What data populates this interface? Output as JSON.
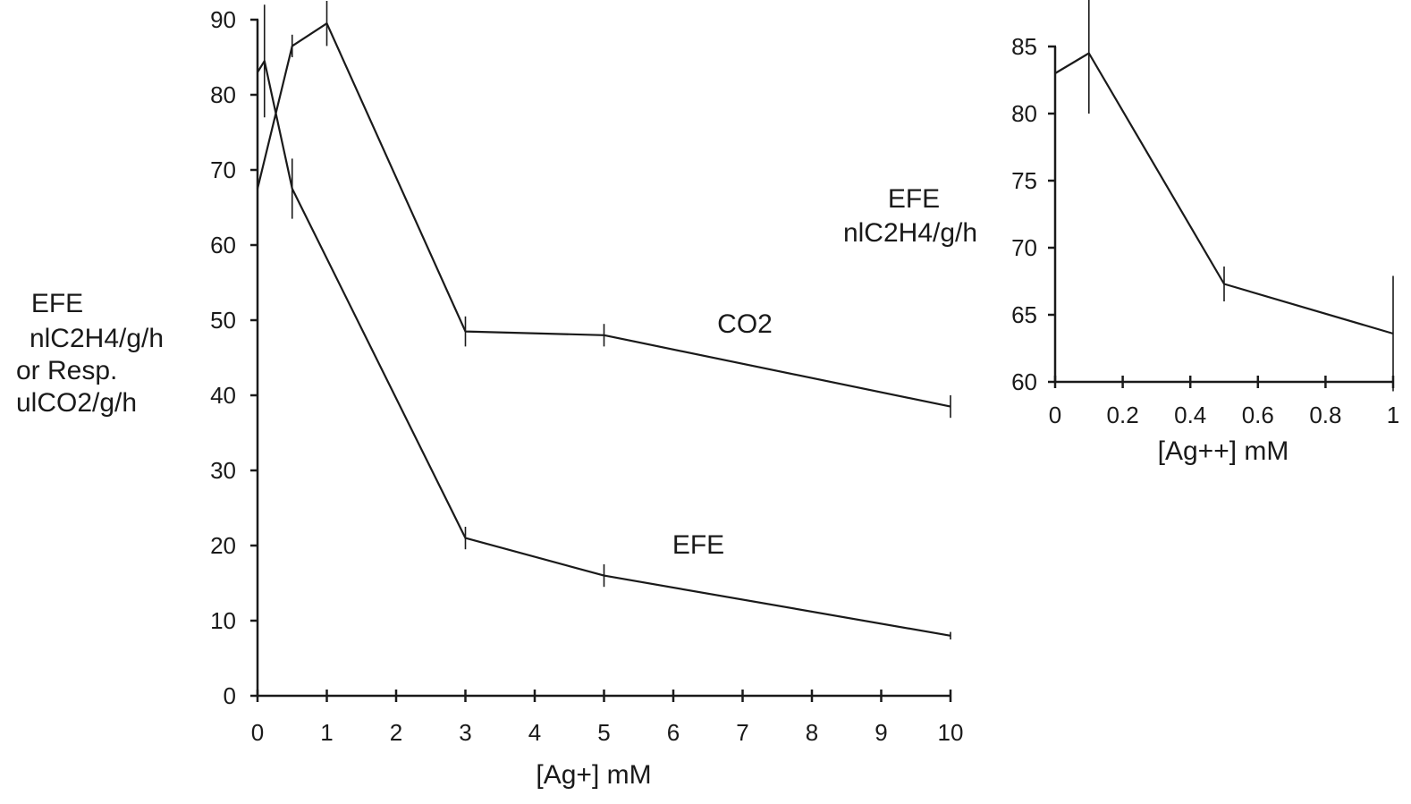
{
  "chart_data": [
    {
      "type": "line",
      "title": "",
      "xlabel": "[Ag+] mM",
      "ylabel_lines": [
        "EFE",
        "nlC2H4/g/h",
        "or Resp.",
        "ulCO2/g/h"
      ],
      "xlim": [
        0,
        10
      ],
      "ylim": [
        0,
        90
      ],
      "xticks": [
        0,
        1,
        2,
        3,
        4,
        5,
        6,
        7,
        8,
        9,
        10
      ],
      "yticks": [
        0,
        10,
        20,
        30,
        40,
        50,
        60,
        70,
        80,
        90
      ],
      "grid": false,
      "series": [
        {
          "name": "CO2",
          "x": [
            0,
            0.5,
            1,
            3,
            5,
            10
          ],
          "y": [
            67.5,
            86.5,
            89.5,
            48.5,
            48,
            38.5
          ],
          "err": [
            5,
            1.5,
            3,
            2,
            1.5,
            1.5
          ]
        },
        {
          "name": "EFE",
          "x": [
            0,
            0.1,
            0.5,
            3,
            5,
            10
          ],
          "y": [
            83,
            84.5,
            67.5,
            21,
            16,
            8
          ],
          "err": [
            0,
            7.5,
            4,
            1.5,
            1.5,
            0.5
          ]
        }
      ]
    },
    {
      "type": "line",
      "title": "",
      "xlabel": "[Ag++] mM",
      "ylabel_lines": [
        "EFE",
        "nlC2H4/g/h"
      ],
      "xlim": [
        0,
        1
      ],
      "ylim": [
        60,
        85
      ],
      "xticks": [
        0,
        0.2,
        0.4,
        0.6,
        0.8,
        1
      ],
      "xtick_labels": [
        "0",
        "0.2",
        "0.4",
        "0.6",
        "0.8",
        "1"
      ],
      "yticks": [
        60,
        65,
        70,
        75,
        80,
        85
      ],
      "grid": false,
      "series": [
        {
          "name": "",
          "x": [
            0,
            0.1,
            0.5,
            1
          ],
          "y": [
            83,
            84.5,
            67.3,
            63.6
          ],
          "err": [
            0,
            4.5,
            1.3,
            4.3
          ]
        }
      ]
    }
  ]
}
